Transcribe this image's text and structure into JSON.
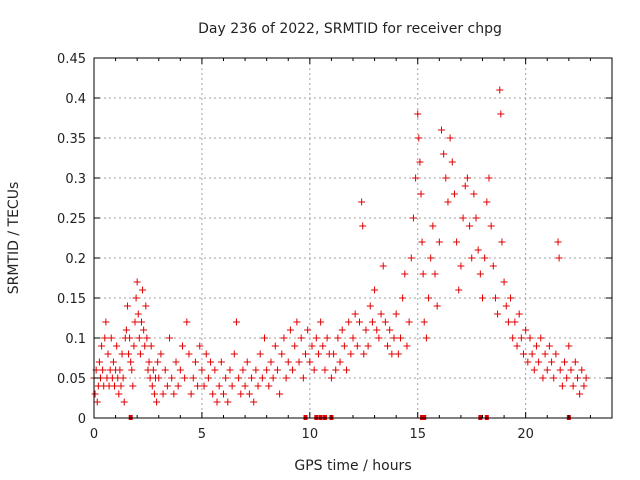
{
  "chart_data": {
    "type": "scatter",
    "title": "Day 236 of 2022, SRMTID for receiver chpg",
    "xlabel": "GPS time / hours",
    "ylabel": "SRMTID / TECUs",
    "xlim": [
      0,
      24
    ],
    "ylim": [
      0,
      0.45
    ],
    "xticks": [
      0,
      5,
      10,
      15,
      20
    ],
    "xtick_labels": [
      "0",
      "5",
      "10",
      "15",
      "20"
    ],
    "yticks": [
      0,
      0.05,
      0.1,
      0.15,
      0.2,
      0.25,
      0.3,
      0.35,
      0.4,
      0.45
    ],
    "ytick_labels": [
      "0",
      "0.05",
      "0.1",
      "0.15",
      "0.2",
      "0.25",
      "0.3",
      "0.35",
      "0.4",
      "0.45"
    ],
    "grid": true,
    "marker": "plus",
    "color": "#e00000",
    "series": [
      {
        "name": "SRMTID",
        "points": [
          [
            0.0,
            0.05
          ],
          [
            0.05,
            0.03
          ],
          [
            0.1,
            0.06
          ],
          [
            0.15,
            0.02
          ],
          [
            0.2,
            0.04
          ],
          [
            0.25,
            0.07
          ],
          [
            0.3,
            0.05
          ],
          [
            0.35,
            0.09
          ],
          [
            0.4,
            0.06
          ],
          [
            0.45,
            0.04
          ],
          [
            0.5,
            0.1
          ],
          [
            0.55,
            0.12
          ],
          [
            0.6,
            0.05
          ],
          [
            0.65,
            0.08
          ],
          [
            0.7,
            0.04
          ],
          [
            0.75,
            0.06
          ],
          [
            0.8,
            0.1
          ],
          [
            0.85,
            0.05
          ],
          [
            0.9,
            0.07
          ],
          [
            0.95,
            0.04
          ],
          [
            1.0,
            0.06
          ],
          [
            1.05,
            0.09
          ],
          [
            1.1,
            0.05
          ],
          [
            1.15,
            0.03
          ],
          [
            1.2,
            0.06
          ],
          [
            1.25,
            0.04
          ],
          [
            1.3,
            0.08
          ],
          [
            1.35,
            0.05
          ],
          [
            1.4,
            0.02
          ],
          [
            1.45,
            0.1
          ],
          [
            1.5,
            0.11
          ],
          [
            1.55,
            0.14
          ],
          [
            1.6,
            0.08
          ],
          [
            1.65,
            0.1
          ],
          [
            1.7,
            0.07
          ],
          [
            1.75,
            0.06
          ],
          [
            1.8,
            0.04
          ],
          [
            1.85,
            0.09
          ],
          [
            1.9,
            0.12
          ],
          [
            1.95,
            0.15
          ],
          [
            2.0,
            0.17
          ],
          [
            2.05,
            0.13
          ],
          [
            2.1,
            0.1
          ],
          [
            2.15,
            0.08
          ],
          [
            2.2,
            0.12
          ],
          [
            2.25,
            0.16
          ],
          [
            2.3,
            0.11
          ],
          [
            2.35,
            0.09
          ],
          [
            2.4,
            0.14
          ],
          [
            2.45,
            0.1
          ],
          [
            2.5,
            0.06
          ],
          [
            2.55,
            0.07
          ],
          [
            2.6,
            0.05
          ],
          [
            2.65,
            0.09
          ],
          [
            2.7,
            0.04
          ],
          [
            2.75,
            0.06
          ],
          [
            2.8,
            0.03
          ],
          [
            2.85,
            0.05
          ],
          [
            2.9,
            0.02
          ],
          [
            2.95,
            0.07
          ],
          [
            3.0,
            0.05
          ],
          [
            3.1,
            0.08
          ],
          [
            3.2,
            0.03
          ],
          [
            3.3,
            0.06
          ],
          [
            3.4,
            0.04
          ],
          [
            3.5,
            0.1
          ],
          [
            3.6,
            0.05
          ],
          [
            3.7,
            0.03
          ],
          [
            3.8,
            0.07
          ],
          [
            3.9,
            0.04
          ],
          [
            4.0,
            0.06
          ],
          [
            4.1,
            0.09
          ],
          [
            4.2,
            0.05
          ],
          [
            4.3,
            0.12
          ],
          [
            4.4,
            0.08
          ],
          [
            4.5,
            0.03
          ],
          [
            4.6,
            0.05
          ],
          [
            4.7,
            0.07
          ],
          [
            4.8,
            0.04
          ],
          [
            4.9,
            0.09
          ],
          [
            5.0,
            0.06
          ],
          [
            5.1,
            0.04
          ],
          [
            5.2,
            0.08
          ],
          [
            5.3,
            0.05
          ],
          [
            5.4,
            0.07
          ],
          [
            5.5,
            0.03
          ],
          [
            5.6,
            0.06
          ],
          [
            5.7,
            0.02
          ],
          [
            5.8,
            0.04
          ],
          [
            5.9,
            0.07
          ],
          [
            6.0,
            0.03
          ],
          [
            6.1,
            0.05
          ],
          [
            6.2,
            0.02
          ],
          [
            6.3,
            0.06
          ],
          [
            6.4,
            0.04
          ],
          [
            6.5,
            0.08
          ],
          [
            6.6,
            0.12
          ],
          [
            6.7,
            0.05
          ],
          [
            6.8,
            0.03
          ],
          [
            6.9,
            0.06
          ],
          [
            7.0,
            0.04
          ],
          [
            7.1,
            0.07
          ],
          [
            7.2,
            0.03
          ],
          [
            7.3,
            0.05
          ],
          [
            7.4,
            0.02
          ],
          [
            7.5,
            0.06
          ],
          [
            7.6,
            0.04
          ],
          [
            7.7,
            0.08
          ],
          [
            7.8,
            0.05
          ],
          [
            7.9,
            0.1
          ],
          [
            8.0,
            0.06
          ],
          [
            8.1,
            0.04
          ],
          [
            8.2,
            0.07
          ],
          [
            8.3,
            0.05
          ],
          [
            8.4,
            0.09
          ],
          [
            8.5,
            0.06
          ],
          [
            8.6,
            0.03
          ],
          [
            8.7,
            0.08
          ],
          [
            8.8,
            0.1
          ],
          [
            8.9,
            0.05
          ],
          [
            9.0,
            0.07
          ],
          [
            9.1,
            0.11
          ],
          [
            9.2,
            0.06
          ],
          [
            9.3,
            0.09
          ],
          [
            9.4,
            0.12
          ],
          [
            9.5,
            0.07
          ],
          [
            9.6,
            0.1
          ],
          [
            9.7,
            0.05
          ],
          [
            9.8,
            0.08
          ],
          [
            9.9,
            0.11
          ],
          [
            10.0,
            0.07
          ],
          [
            10.1,
            0.09
          ],
          [
            10.2,
            0.06
          ],
          [
            10.3,
            0.1
          ],
          [
            10.4,
            0.08
          ],
          [
            10.5,
            0.12
          ],
          [
            10.6,
            0.09
          ],
          [
            10.7,
            0.06
          ],
          [
            10.8,
            0.1
          ],
          [
            10.9,
            0.08
          ],
          [
            11.0,
            0.05
          ],
          [
            11.1,
            0.08
          ],
          [
            11.2,
            0.06
          ],
          [
            11.3,
            0.1
          ],
          [
            11.4,
            0.07
          ],
          [
            11.5,
            0.11
          ],
          [
            11.6,
            0.09
          ],
          [
            11.7,
            0.06
          ],
          [
            11.8,
            0.12
          ],
          [
            11.9,
            0.08
          ],
          [
            12.0,
            0.1
          ],
          [
            12.1,
            0.13
          ],
          [
            12.2,
            0.09
          ],
          [
            12.3,
            0.12
          ],
          [
            12.4,
            0.27
          ],
          [
            12.45,
            0.24
          ],
          [
            12.5,
            0.08
          ],
          [
            12.6,
            0.11
          ],
          [
            12.7,
            0.09
          ],
          [
            12.8,
            0.14
          ],
          [
            12.9,
            0.12
          ],
          [
            13.0,
            0.16
          ],
          [
            13.1,
            0.11
          ],
          [
            13.2,
            0.1
          ],
          [
            13.3,
            0.13
          ],
          [
            13.4,
            0.19
          ],
          [
            13.5,
            0.12
          ],
          [
            13.6,
            0.09
          ],
          [
            13.7,
            0.11
          ],
          [
            13.8,
            0.08
          ],
          [
            13.9,
            0.1
          ],
          [
            14.0,
            0.13
          ],
          [
            14.1,
            0.08
          ],
          [
            14.2,
            0.1
          ],
          [
            14.3,
            0.15
          ],
          [
            14.4,
            0.18
          ],
          [
            14.5,
            0.09
          ],
          [
            14.6,
            0.12
          ],
          [
            14.7,
            0.2
          ],
          [
            14.8,
            0.25
          ],
          [
            14.9,
            0.3
          ],
          [
            15.0,
            0.38
          ],
          [
            15.05,
            0.35
          ],
          [
            15.1,
            0.32
          ],
          [
            15.15,
            0.28
          ],
          [
            15.2,
            0.22
          ],
          [
            15.25,
            0.18
          ],
          [
            15.3,
            0.12
          ],
          [
            15.4,
            0.1
          ],
          [
            15.5,
            0.15
          ],
          [
            15.6,
            0.2
          ],
          [
            15.7,
            0.24
          ],
          [
            15.8,
            0.18
          ],
          [
            15.9,
            0.14
          ],
          [
            16.0,
            0.22
          ],
          [
            16.1,
            0.36
          ],
          [
            16.2,
            0.33
          ],
          [
            16.3,
            0.3
          ],
          [
            16.4,
            0.27
          ],
          [
            16.5,
            0.35
          ],
          [
            16.6,
            0.32
          ],
          [
            16.7,
            0.28
          ],
          [
            16.8,
            0.22
          ],
          [
            16.9,
            0.16
          ],
          [
            17.0,
            0.19
          ],
          [
            17.1,
            0.25
          ],
          [
            17.2,
            0.29
          ],
          [
            17.3,
            0.3
          ],
          [
            17.4,
            0.24
          ],
          [
            17.5,
            0.2
          ],
          [
            17.6,
            0.28
          ],
          [
            17.7,
            0.25
          ],
          [
            17.8,
            0.21
          ],
          [
            17.9,
            0.18
          ],
          [
            18.0,
            0.15
          ],
          [
            18.1,
            0.2
          ],
          [
            18.2,
            0.27
          ],
          [
            18.3,
            0.3
          ],
          [
            18.4,
            0.24
          ],
          [
            18.5,
            0.19
          ],
          [
            18.6,
            0.15
          ],
          [
            18.7,
            0.13
          ],
          [
            18.8,
            0.41
          ],
          [
            18.85,
            0.38
          ],
          [
            18.9,
            0.22
          ],
          [
            19.0,
            0.17
          ],
          [
            19.1,
            0.14
          ],
          [
            19.2,
            0.12
          ],
          [
            19.3,
            0.15
          ],
          [
            19.4,
            0.1
          ],
          [
            19.5,
            0.12
          ],
          [
            19.6,
            0.09
          ],
          [
            19.7,
            0.13
          ],
          [
            19.8,
            0.1
          ],
          [
            19.9,
            0.08
          ],
          [
            20.0,
            0.11
          ],
          [
            20.1,
            0.07
          ],
          [
            20.2,
            0.1
          ],
          [
            20.3,
            0.08
          ],
          [
            20.4,
            0.06
          ],
          [
            20.5,
            0.09
          ],
          [
            20.6,
            0.07
          ],
          [
            20.7,
            0.1
          ],
          [
            20.8,
            0.05
          ],
          [
            20.9,
            0.08
          ],
          [
            21.0,
            0.06
          ],
          [
            21.1,
            0.09
          ],
          [
            21.2,
            0.07
          ],
          [
            21.3,
            0.05
          ],
          [
            21.4,
            0.08
          ],
          [
            21.5,
            0.22
          ],
          [
            21.55,
            0.2
          ],
          [
            21.6,
            0.06
          ],
          [
            21.7,
            0.04
          ],
          [
            21.8,
            0.07
          ],
          [
            21.9,
            0.05
          ],
          [
            22.0,
            0.09
          ],
          [
            22.1,
            0.06
          ],
          [
            22.2,
            0.04
          ],
          [
            22.3,
            0.07
          ],
          [
            22.4,
            0.05
          ],
          [
            22.5,
            0.03
          ],
          [
            22.6,
            0.06
          ],
          [
            22.7,
            0.04
          ],
          [
            22.8,
            0.05
          ]
        ]
      }
    ],
    "baseline_markers_hours": [
      1.7,
      9.8,
      10.3,
      10.5,
      10.7,
      11.0,
      15.2,
      15.3,
      17.9,
      18.2,
      22.0
    ]
  }
}
